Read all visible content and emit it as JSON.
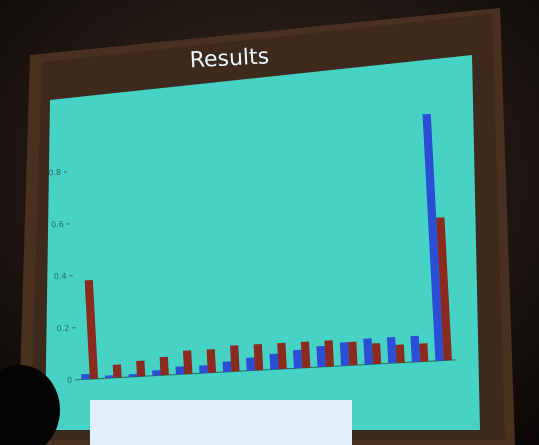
{
  "chart_data": {
    "type": "bar",
    "title": "Results",
    "categories": [
      null,
      null,
      null,
      null,
      null,
      null,
      null,
      null,
      null,
      null,
      null,
      null,
      null,
      null,
      null,
      null
    ],
    "series": [
      {
        "color": "#2a4fd6",
        "values": [
          0.02,
          0.01,
          0.01,
          0.02,
          0.03,
          0.03,
          0.04,
          0.05,
          0.06,
          0.07,
          0.08,
          0.09,
          0.1,
          0.1,
          0.1,
          0.95
        ]
      },
      {
        "color": "#8b2a1e",
        "values": [
          0.38,
          0.05,
          0.06,
          0.07,
          0.09,
          0.09,
          0.1,
          0.1,
          0.1,
          0.1,
          0.1,
          0.09,
          0.08,
          0.07,
          0.07,
          0.55
        ]
      }
    ],
    "ylim": [
      0,
      1
    ],
    "yticks": [
      0,
      0.2,
      0.4,
      0.6,
      0.8
    ],
    "grid": false
  }
}
